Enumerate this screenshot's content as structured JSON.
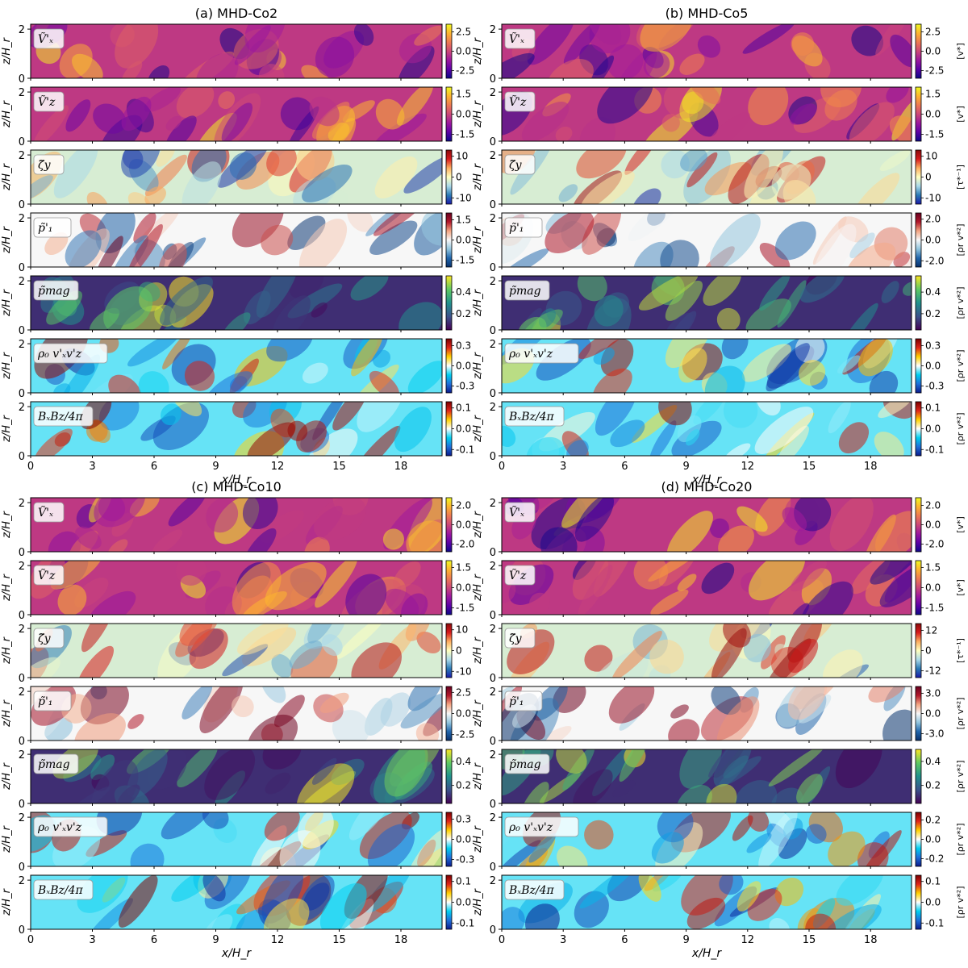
{
  "figure": {
    "xlabel": "x/H_r",
    "ylabel": "z/H_r",
    "xticks": [
      0,
      3,
      6,
      9,
      12,
      15,
      18
    ],
    "yticks": [
      0,
      2
    ],
    "xlim": [
      0,
      20
    ],
    "ylim": [
      0,
      2.2
    ]
  },
  "quantities": [
    {
      "key": "vx",
      "label": "Ṽ'ₓ",
      "unit": "[v*]",
      "cmap": "plasma"
    },
    {
      "key": "vz",
      "label": "Ṽ'z",
      "unit": "[v*]",
      "cmap": "plasma"
    },
    {
      "key": "zeta",
      "label": "ζ̃y",
      "unit": "[τ*⁻¹]",
      "cmap": "rdylbu"
    },
    {
      "key": "p1",
      "label": "p̃'₁",
      "unit": "[ρr v*²]",
      "cmap": "rdbu"
    },
    {
      "key": "pmag",
      "label": "p̃mag",
      "unit": "[ρr v*²]",
      "cmap": "viridis"
    },
    {
      "key": "rey",
      "label": "ρ₀ v'ₓv'z",
      "unit": "[ρr v*²]",
      "cmap": "cyanred"
    },
    {
      "key": "max",
      "label": "BₓBz/4π",
      "unit": "[ρr v*²]",
      "cmap": "cyanred"
    }
  ],
  "chart_data": [
    {
      "type": "heatmap",
      "title": "(a) MHD-Co2",
      "panels": [
        {
          "key": "vx",
          "colorbar_ticks": [
            "2.5",
            "0.0",
            "-2.5"
          ],
          "vmin": -3.5,
          "vmax": 3.5
        },
        {
          "key": "vz",
          "colorbar_ticks": [
            "1.5",
            "0.0",
            "-1.5"
          ],
          "vmin": -2,
          "vmax": 2
        },
        {
          "key": "zeta",
          "colorbar_ticks": [
            "10",
            "0",
            "-10"
          ],
          "vmin": -13,
          "vmax": 13
        },
        {
          "key": "p1",
          "colorbar_ticks": [
            "1.5",
            "0.0",
            "-1.5"
          ],
          "vmin": -2,
          "vmax": 2
        },
        {
          "key": "pmag",
          "colorbar_ticks": [
            "0.4",
            "0.2"
          ],
          "vmin": 0.05,
          "vmax": 0.55
        },
        {
          "key": "rey",
          "colorbar_ticks": [
            "0.3",
            "0.0",
            "-0.3"
          ],
          "vmin": -0.4,
          "vmax": 0.4
        },
        {
          "key": "max",
          "colorbar_ticks": [
            "0.1",
            "0.0",
            "-0.1"
          ],
          "vmin": -0.13,
          "vmax": 0.13
        }
      ]
    },
    {
      "type": "heatmap",
      "title": "(b) MHD-Co5",
      "panels": [
        {
          "key": "vx",
          "colorbar_ticks": [
            "2.5",
            "0.0",
            "-2.5"
          ],
          "vmin": -3.5,
          "vmax": 3.5
        },
        {
          "key": "vz",
          "colorbar_ticks": [
            "1.5",
            "0.0",
            "-1.5"
          ],
          "vmin": -2,
          "vmax": 2
        },
        {
          "key": "zeta",
          "colorbar_ticks": [
            "10",
            "0",
            "-10"
          ],
          "vmin": -13,
          "vmax": 13
        },
        {
          "key": "p1",
          "colorbar_ticks": [
            "2.0",
            "0.0",
            "-2.0"
          ],
          "vmin": -2.6,
          "vmax": 2.6
        },
        {
          "key": "pmag",
          "colorbar_ticks": [
            "0.4",
            "0.2"
          ],
          "vmin": 0.05,
          "vmax": 0.55
        },
        {
          "key": "rey",
          "colorbar_ticks": [
            "0.3",
            "0.0",
            "-0.3"
          ],
          "vmin": -0.4,
          "vmax": 0.4
        },
        {
          "key": "max",
          "colorbar_ticks": [
            "0.1",
            "0.0",
            "-0.1"
          ],
          "vmin": -0.13,
          "vmax": 0.13
        }
      ]
    },
    {
      "type": "heatmap",
      "title": "(c) MHD-Co10",
      "panels": [
        {
          "key": "vx",
          "colorbar_ticks": [
            "2.0",
            "0.0",
            "-2.0"
          ],
          "vmin": -2.8,
          "vmax": 2.8
        },
        {
          "key": "vz",
          "colorbar_ticks": [
            "1.5",
            "0.0",
            "-1.5"
          ],
          "vmin": -2,
          "vmax": 2
        },
        {
          "key": "zeta",
          "colorbar_ticks": [
            "10",
            "0",
            "-10"
          ],
          "vmin": -13,
          "vmax": 13
        },
        {
          "key": "p1",
          "colorbar_ticks": [
            "2.5",
            "0.0",
            "-2.5"
          ],
          "vmin": -3.2,
          "vmax": 3.2
        },
        {
          "key": "pmag",
          "colorbar_ticks": [
            "0.4",
            "0.2"
          ],
          "vmin": 0.05,
          "vmax": 0.5
        },
        {
          "key": "rey",
          "colorbar_ticks": [
            "0.3",
            "0.0",
            "-0.3"
          ],
          "vmin": -0.4,
          "vmax": 0.4
        },
        {
          "key": "max",
          "colorbar_ticks": [
            "0.1",
            "0.0",
            "-0.1"
          ],
          "vmin": -0.13,
          "vmax": 0.13
        }
      ]
    },
    {
      "type": "heatmap",
      "title": "(d) MHD-Co20",
      "panels": [
        {
          "key": "vx",
          "colorbar_ticks": [
            "2.0",
            "0.0",
            "-2.0"
          ],
          "vmin": -2.8,
          "vmax": 2.8
        },
        {
          "key": "vz",
          "colorbar_ticks": [
            "1.5",
            "0.0",
            "-1.5"
          ],
          "vmin": -2,
          "vmax": 2
        },
        {
          "key": "zeta",
          "colorbar_ticks": [
            "12",
            "0",
            "-12"
          ],
          "vmin": -16,
          "vmax": 16
        },
        {
          "key": "p1",
          "colorbar_ticks": [
            "3.0",
            "0.0",
            "-3.0"
          ],
          "vmin": -4,
          "vmax": 4
        },
        {
          "key": "pmag",
          "colorbar_ticks": [
            "0.4",
            "0.2"
          ],
          "vmin": 0.05,
          "vmax": 0.5
        },
        {
          "key": "rey",
          "colorbar_ticks": [
            "0.2",
            "0.0",
            "-0.2"
          ],
          "vmin": -0.28,
          "vmax": 0.28
        },
        {
          "key": "max",
          "colorbar_ticks": [
            "0.1",
            "0.0",
            "-0.1"
          ],
          "vmin": -0.13,
          "vmax": 0.13
        }
      ]
    }
  ]
}
